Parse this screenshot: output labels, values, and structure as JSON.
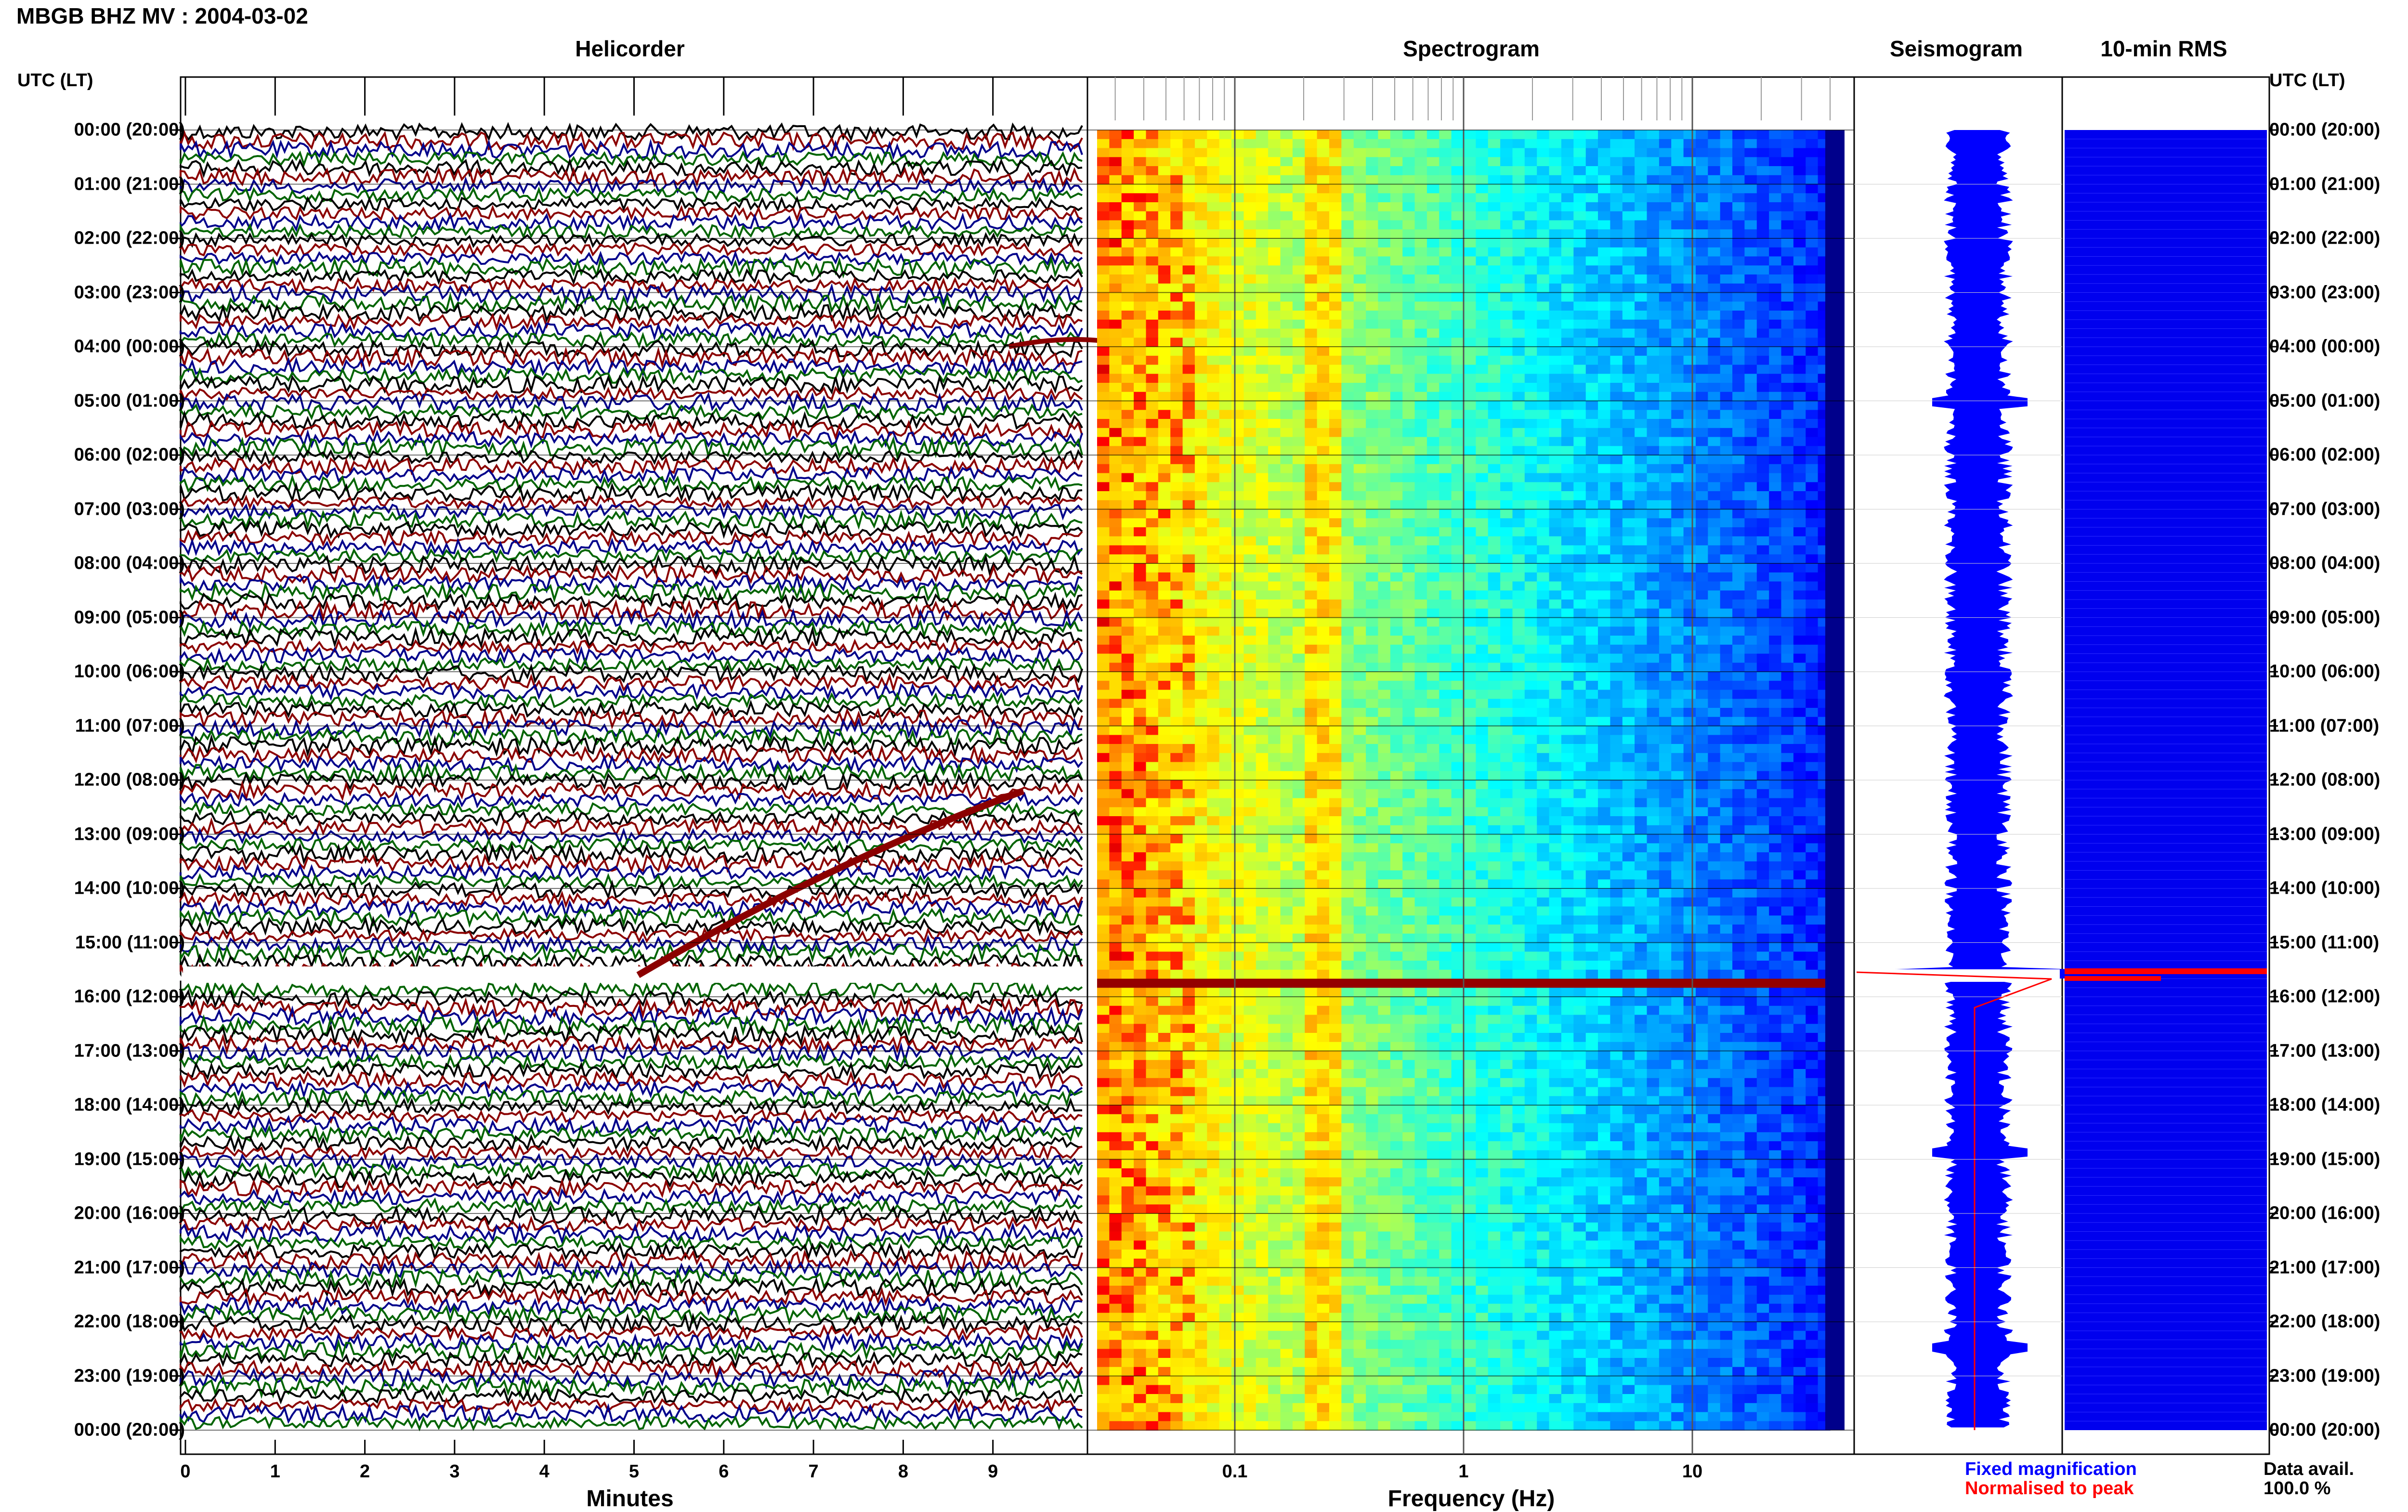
{
  "page": {
    "title": "MBGB BHZ MV : 2004-03-02",
    "timezone_header_left": "UTC (LT)",
    "timezone_header_right": "UTC (LT)"
  },
  "panels": {
    "helicorder": "Helicorder",
    "spectrogram": "Spectrogram",
    "seismogram": "Seismogram",
    "rms": "10-min RMS"
  },
  "legend": {
    "fixed": "Fixed magnification",
    "normalised": "Normalised to peak",
    "data_avail_label": "Data avail.",
    "data_avail_value": "100.0 %"
  },
  "colors": {
    "trace_cycle": [
      "#000000",
      "#8b0000",
      "#00008b",
      "#006400"
    ],
    "fixed_magnification": "#0000ff",
    "normalised": "#ff0000",
    "rms_fill": "#0000ee",
    "event_marker": "#ff0000"
  },
  "chart_data": [
    {
      "type": "line",
      "name": "helicorder",
      "xlabel": "Minutes",
      "ticks": [
        "0",
        "1",
        "2",
        "3",
        "4",
        "5",
        "6",
        "7",
        "8",
        "9"
      ],
      "xlim": [
        0,
        10
      ],
      "y_labels": [
        "00:00 (20:00)",
        "01:00 (21:00)",
        "02:00 (22:00)",
        "03:00 (23:00)",
        "04:00 (00:00)",
        "05:00 (01:00)",
        "06:00 (02:00)",
        "07:00 (03:00)",
        "08:00 (04:00)",
        "09:00 (05:00)",
        "10:00 (06:00)",
        "11:00 (07:00)",
        "12:00 (08:00)",
        "13:00 (09:00)",
        "14:00 (10:00)",
        "15:00 (11:00)",
        "16:00 (12:00)",
        "17:00 (13:00)",
        "18:00 (14:00)",
        "19:00 (15:00)",
        "20:00 (16:00)",
        "21:00 (17:00)",
        "22:00 (18:00)",
        "23:00 (19:00)",
        "00:00 (20:00)"
      ],
      "rows": 144,
      "event_row_hour": 15.6
    },
    {
      "type": "heatmap",
      "name": "spectrogram",
      "xlabel": "Frequency (Hz)",
      "x_scale": "log",
      "xlim": [
        0.025,
        40
      ],
      "ticks": [
        "0.1",
        "1",
        "10"
      ],
      "tick_values": [
        0.1,
        1,
        10
      ],
      "colormap": "jet",
      "event_hour": 15.6
    },
    {
      "type": "area",
      "name": "seismogram",
      "series": [
        "Fixed magnification",
        "Normalised to peak"
      ]
    },
    {
      "type": "bar",
      "name": "rms",
      "values_note_hours": 24,
      "event_hour": 15.6
    }
  ]
}
